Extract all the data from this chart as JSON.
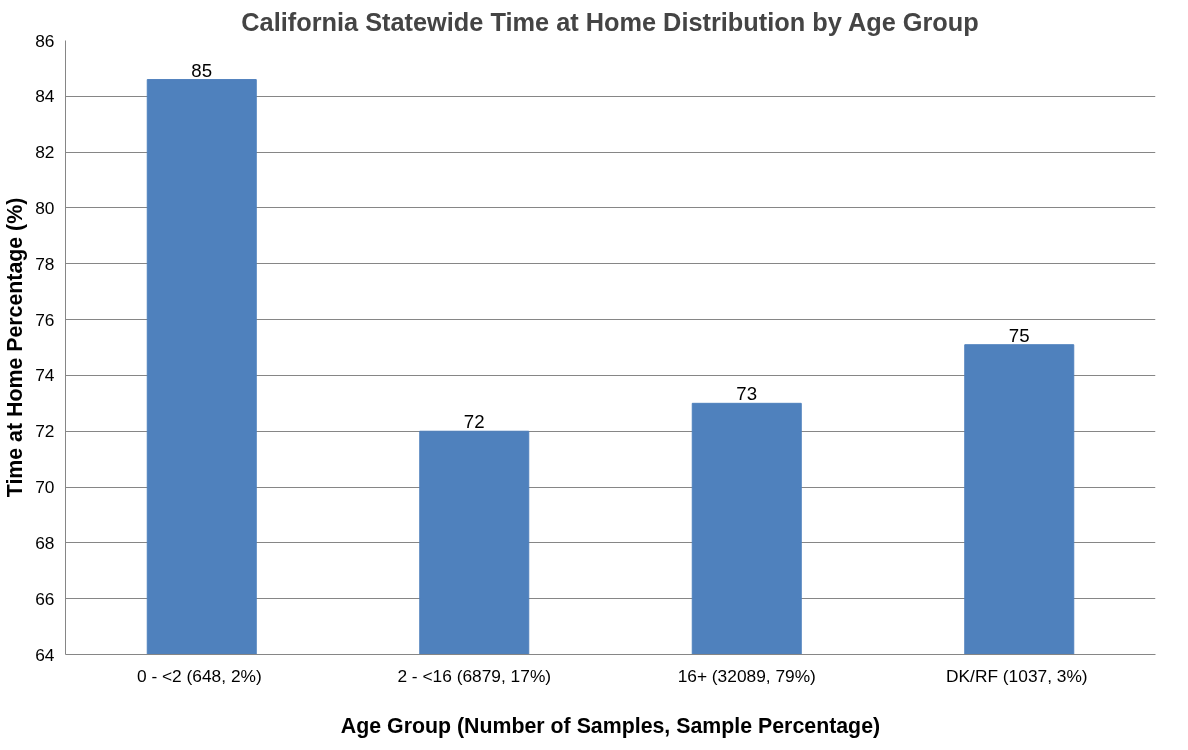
{
  "chart_data": {
    "type": "bar",
    "title": "California Statewide Time at Home Distribution by Age Group",
    "xlabel": "Age Group (Number of Samples, Sample Percentage)",
    "ylabel": "Time at Home Percentage (%)",
    "categories": [
      "0 - <2 (648,  2%)",
      "2 - <16 (6879, 17%)",
      "16+ (32089, 79%)",
      "DK/RF (1037,  3%)"
    ],
    "values": [
      84.6,
      72.0,
      73.0,
      75.1
    ],
    "value_labels": [
      "85",
      "72",
      "73",
      "75"
    ],
    "color": "#4f81bd",
    "ylim": [
      64,
      86
    ],
    "yticks": [
      64,
      66,
      68,
      70,
      72,
      74,
      76,
      78,
      80,
      82,
      84,
      86
    ],
    "grid": "y"
  }
}
